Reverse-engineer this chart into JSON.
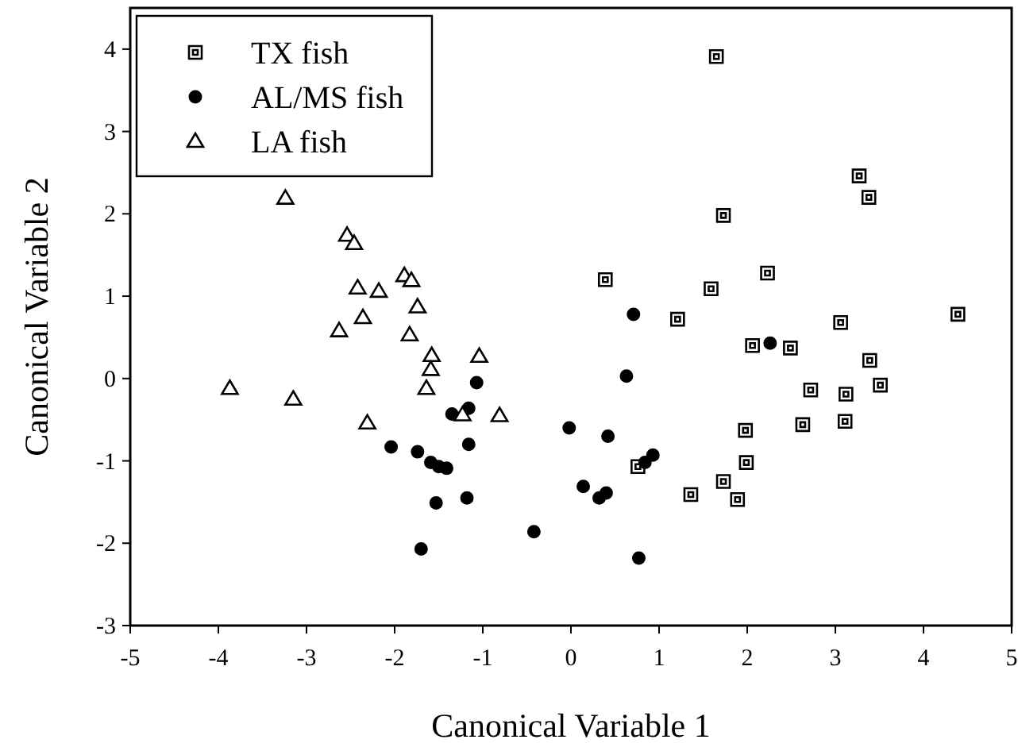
{
  "chart_data": {
    "type": "scatter",
    "xlabel": "Canonical Variable 1",
    "ylabel": "Canonical Variable 2",
    "xlim": [
      -5,
      5
    ],
    "ylim": [
      -3,
      4.5
    ],
    "xticks": [
      -5,
      -4,
      -3,
      -2,
      -1,
      0,
      1,
      2,
      3,
      4,
      5
    ],
    "yticks": [
      -3,
      -2,
      -1,
      0,
      1,
      2,
      3,
      4
    ],
    "grid": false,
    "legend": "top left",
    "series": [
      {
        "name": "TX fish",
        "color": "#000000",
        "marker": "square",
        "x": [
          1.65,
          3.27,
          3.38,
          1.73,
          2.23,
          0.39,
          1.59,
          1.21,
          3.06,
          4.39,
          2.06,
          2.49,
          3.39,
          3.51,
          2.72,
          3.12,
          2.63,
          3.11,
          1.98,
          1.99,
          1.73,
          1.89,
          1.36,
          0.76
        ],
        "values": [
          3.91,
          2.46,
          2.2,
          1.98,
          1.28,
          1.2,
          1.09,
          0.72,
          0.68,
          0.78,
          0.4,
          0.37,
          0.22,
          -0.08,
          -0.14,
          -0.19,
          -0.56,
          -0.52,
          -0.63,
          -1.02,
          -1.25,
          -1.47,
          -1.41,
          -1.07
        ]
      },
      {
        "name": "AL/MS fish",
        "color": "#000000",
        "marker": "circle",
        "x": [
          -1.07,
          -1.16,
          -1.35,
          -2.04,
          -1.74,
          -1.59,
          -1.5,
          -1.41,
          -1.16,
          -1.18,
          -1.53,
          -1.7,
          -0.42,
          -0.02,
          0.63,
          0.42,
          0.14,
          0.4,
          0.32,
          0.84,
          0.93,
          0.77,
          2.26,
          0.71
        ],
        "values": [
          -0.05,
          -0.36,
          -0.43,
          -0.83,
          -0.89,
          -1.02,
          -1.07,
          -1.09,
          -0.8,
          -1.45,
          -1.51,
          -2.07,
          -1.86,
          -0.6,
          0.03,
          -0.7,
          -1.31,
          -1.39,
          -1.45,
          -1.02,
          -0.93,
          -2.18,
          0.43,
          0.78
        ]
      },
      {
        "name": "LA fish",
        "color": "#000000",
        "marker": "triangle",
        "x": [
          -3.24,
          -2.54,
          -2.46,
          -2.42,
          -2.18,
          -2.36,
          -2.63,
          -1.89,
          -1.81,
          -1.74,
          -1.83,
          -1.58,
          -1.59,
          -1.04,
          -3.87,
          -3.15,
          -2.31,
          -1.64,
          -0.81,
          -1.23
        ],
        "values": [
          2.19,
          1.74,
          1.64,
          1.1,
          1.06,
          0.74,
          0.58,
          1.25,
          1.19,
          0.87,
          0.53,
          0.28,
          0.11,
          0.27,
          -0.12,
          -0.25,
          -0.54,
          -0.12,
          -0.45,
          -0.44
        ]
      }
    ]
  }
}
